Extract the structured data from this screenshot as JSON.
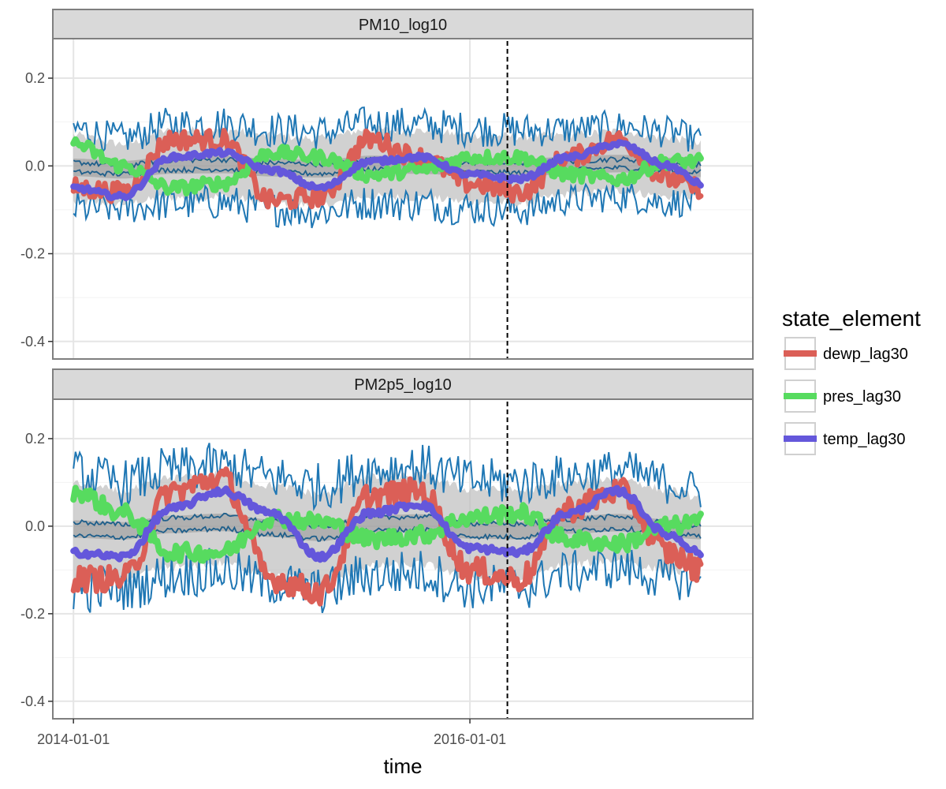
{
  "chart_data": {
    "type": "line",
    "facets": [
      "PM10_log10",
      "PM2p5_log10"
    ],
    "xlabel": "time",
    "x_ticks": [
      "2014-01-01",
      "2016-01-01"
    ],
    "x_range": [
      "2013-11-24",
      "2017-06-05"
    ],
    "y_ticks": [
      "0.2",
      "0.0",
      "-0.2",
      "-0.4"
    ],
    "y_tick_values": [
      0.2,
      0.0,
      -0.2,
      -0.4
    ],
    "ylim": [
      -0.44,
      0.29
    ],
    "vline_date": "2016-03-10",
    "vline_style": "dashed",
    "grid": true,
    "legend_title": "state_element",
    "legend_position": "right",
    "legend": [
      {
        "name": "dewp_lag30",
        "color": "#DB5F57"
      },
      {
        "name": "pres_lag30",
        "color": "#57DB5F"
      },
      {
        "name": "temp_lag30",
        "color": "#6457DB"
      }
    ],
    "band_color": "#1F77B4",
    "series_points": {
      "dates": [
        "2014-01-01",
        "2014-04-01",
        "2014-07-01",
        "2014-10-01",
        "2015-01-01",
        "2015-04-01",
        "2015-07-01",
        "2015-10-01",
        "2016-01-01",
        "2016-04-01",
        "2016-07-01",
        "2016-10-01",
        "2017-01-01",
        "2017-03-01"
      ],
      "PM10_log10": {
        "dewp_lag30": [
          -0.05,
          -0.06,
          0.06,
          0.06,
          -0.08,
          -0.07,
          0.06,
          0.02,
          -0.04,
          -0.06,
          0.02,
          0.06,
          -0.03,
          -0.05
        ],
        "pres_lag30": [
          0.05,
          0.0,
          -0.05,
          -0.04,
          0.03,
          0.02,
          -0.02,
          -0.01,
          0.02,
          0.02,
          -0.02,
          -0.03,
          0.01,
          0.01
        ],
        "temp_lag30": [
          -0.05,
          -0.07,
          0.02,
          0.03,
          -0.01,
          -0.05,
          0.01,
          0.02,
          -0.02,
          -0.03,
          0.02,
          0.05,
          0.0,
          -0.04
        ],
        "band_half_width": [
          0.09,
          0.08,
          0.09,
          0.09,
          0.09,
          0.09,
          0.09,
          0.09,
          0.09,
          0.09,
          0.08,
          0.08,
          0.08,
          0.07
        ]
      },
      "PM2p5_log10": {
        "dewp_lag30": [
          -0.12,
          -0.12,
          0.08,
          0.11,
          -0.12,
          -0.15,
          0.07,
          0.08,
          -0.1,
          -0.12,
          0.04,
          0.08,
          -0.06,
          -0.1
        ],
        "pres_lag30": [
          0.08,
          0.03,
          -0.06,
          -0.06,
          0.02,
          0.01,
          -0.03,
          -0.02,
          0.02,
          0.03,
          -0.03,
          -0.04,
          0.0,
          0.01
        ],
        "temp_lag30": [
          -0.06,
          -0.07,
          0.04,
          0.08,
          0.03,
          -0.07,
          0.03,
          0.05,
          -0.05,
          -0.06,
          0.03,
          0.08,
          -0.02,
          -0.06
        ],
        "band_half_width": [
          0.13,
          0.12,
          0.12,
          0.12,
          0.12,
          0.12,
          0.12,
          0.12,
          0.12,
          0.12,
          0.11,
          0.11,
          0.11,
          0.1
        ]
      }
    }
  }
}
